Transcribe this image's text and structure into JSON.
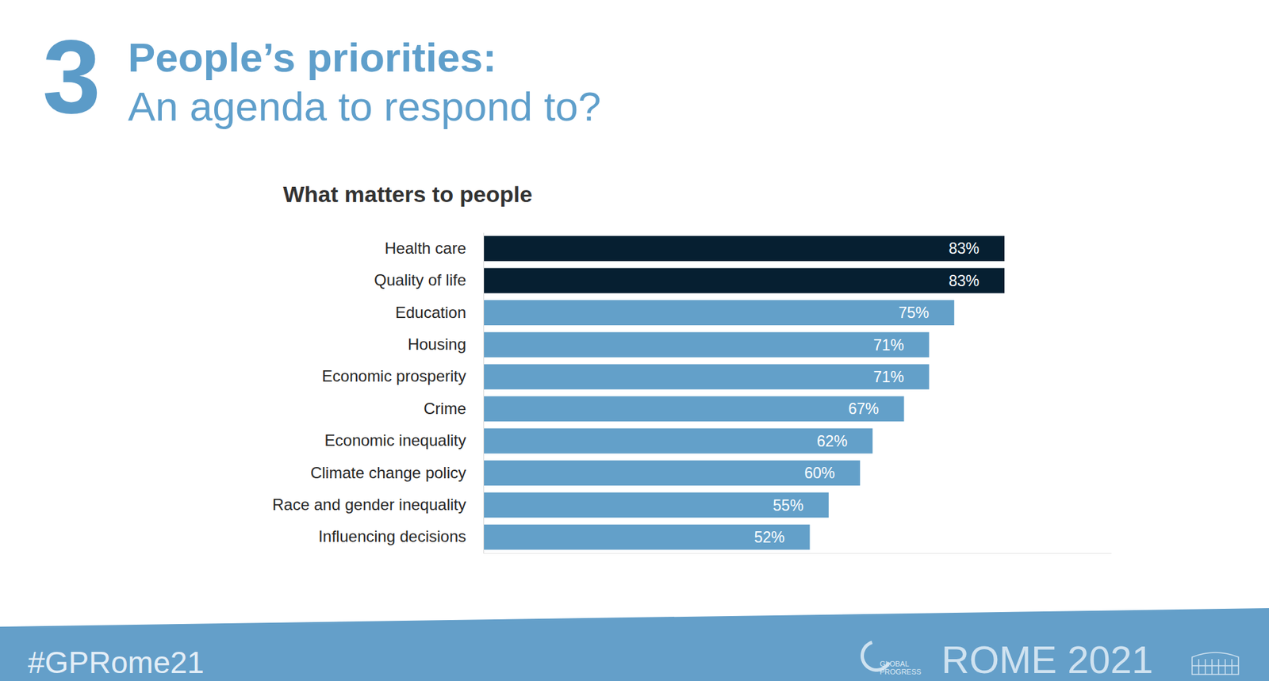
{
  "slide": {
    "number": "3",
    "heading": "People’s priorities:",
    "subheading": "An agenda to respond to?"
  },
  "chart_data": {
    "type": "bar",
    "orientation": "horizontal",
    "title": "What matters to people",
    "categories": [
      "Health care",
      "Quality of life",
      "Education",
      "Housing",
      "Economic prosperity",
      "Crime",
      "Economic inequality",
      "Climate change policy",
      "Race and gender inequality",
      "Influencing decisions"
    ],
    "values": [
      83,
      83,
      75,
      71,
      71,
      67,
      62,
      60,
      55,
      52
    ],
    "value_labels": [
      "83%",
      "83%",
      "75%",
      "71%",
      "71%",
      "67%",
      "62%",
      "60%",
      "55%",
      "52%"
    ],
    "colors": [
      "#061f31",
      "#061f31",
      "#63a0c9",
      "#63a0c9",
      "#63a0c9",
      "#63a0c9",
      "#63a0c9",
      "#63a0c9",
      "#63a0c9",
      "#63a0c9"
    ],
    "xlim": [
      0,
      100
    ],
    "data_labels": true,
    "tick_labels": "y",
    "grid": false
  },
  "footer": {
    "hashtag": "#GPRome21",
    "logo_line1": "GLOBAL",
    "logo_line2": "PROGRESS",
    "event": "ROME 2021"
  }
}
